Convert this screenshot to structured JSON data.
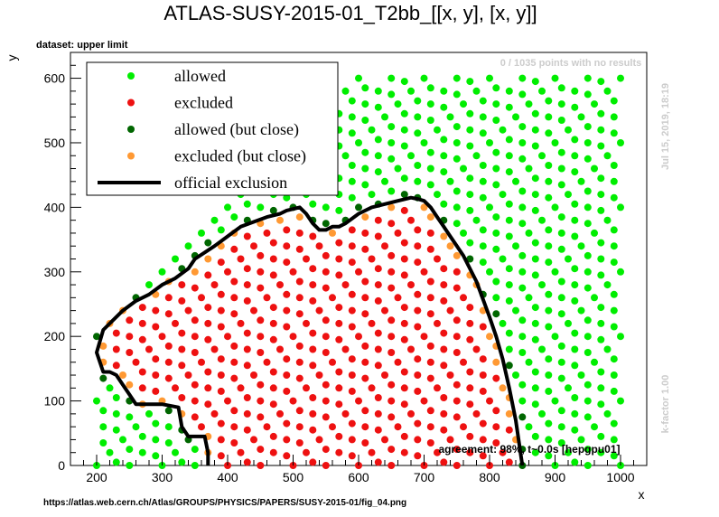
{
  "header": {
    "title": "ATLAS-SUSY-2015-01_T2bb_[[x, y], [x, y]]",
    "dataset_label": "dataset: upper limit",
    "no_results_note": "0 / 1035 points with no results",
    "timestamp": "Jul 15, 2019, 18:19",
    "kfactor": "k-factor 1.00",
    "agreement": "agreement: 98%, t~0.0s [hepgpu01]",
    "source_url": "https://atlas.web.cern.ch/Atlas/GROUPS/PHYSICS/PAPERS/SUSY-2015-01/fig_04.png"
  },
  "colors": {
    "allowed": "#00ee00",
    "excluded": "#ee1111",
    "allowed_close": "#006600",
    "excluded_close": "#ff9933",
    "exclusion_line": "#000000",
    "note_gray": "#cccccc"
  },
  "chart_data": {
    "type": "scatter",
    "title": "ATLAS-SUSY-2015-01_T2bb_[[x, y], [x, y]]",
    "xlabel": "x",
    "ylabel": "y",
    "xlim": [
      160,
      1040
    ],
    "ylim": [
      0,
      640
    ],
    "xticks": [
      200,
      300,
      400,
      500,
      600,
      700,
      800,
      900,
      1000
    ],
    "yticks": [
      0,
      100,
      200,
      300,
      400,
      500,
      600
    ],
    "grid": false,
    "legend_position": "top-left",
    "legend": [
      {
        "label": "allowed",
        "kind": "marker",
        "color": "#00ee00"
      },
      {
        "label": "excluded",
        "kind": "marker",
        "color": "#ee1111"
      },
      {
        "label": "allowed (but close)",
        "kind": "marker",
        "color": "#006600"
      },
      {
        "label": "excluded (but close)",
        "kind": "marker",
        "color": "#ff9933"
      },
      {
        "label": "official exclusion",
        "kind": "line",
        "color": "#000000"
      }
    ],
    "exclusion_curve": {
      "x": [
        370,
        370,
        365,
        340,
        330,
        325,
        300,
        260,
        250,
        240,
        230,
        220,
        210,
        200,
        210,
        240,
        260,
        280,
        300,
        320,
        340,
        350,
        380,
        400,
        420,
        460,
        480,
        490,
        510,
        520,
        530,
        540,
        550,
        560,
        570,
        580,
        600,
        620,
        640,
        660,
        680,
        690,
        700,
        710,
        720,
        730,
        740,
        760,
        780,
        800,
        810,
        820,
        830,
        840,
        850
      ],
      "y": [
        0,
        20,
        45,
        45,
        60,
        90,
        95,
        95,
        110,
        125,
        140,
        145,
        145,
        175,
        210,
        240,
        255,
        265,
        280,
        290,
        305,
        320,
        340,
        355,
        370,
        385,
        390,
        395,
        400,
        390,
        375,
        365,
        365,
        370,
        370,
        375,
        390,
        400,
        405,
        410,
        415,
        413,
        410,
        400,
        385,
        370,
        355,
        325,
        285,
        230,
        200,
        165,
        120,
        70,
        0
      ]
    },
    "grid_spec": {
      "note": "scan points on diagonal lines y = x - c",
      "x_range": [
        200,
        1000
      ],
      "y_range": [
        0,
        600
      ],
      "c_values": [
        0,
        25,
        50,
        75,
        100,
        125,
        150,
        175,
        200,
        225,
        250,
        275,
        300,
        325,
        350,
        375,
        400,
        425,
        450,
        475,
        500,
        525,
        550,
        575,
        600,
        625,
        650,
        675,
        700,
        725,
        750,
        775,
        800,
        825,
        850,
        875,
        900,
        925,
        950,
        975,
        1000
      ],
      "x_step": 20,
      "close_band": 12
    }
  }
}
